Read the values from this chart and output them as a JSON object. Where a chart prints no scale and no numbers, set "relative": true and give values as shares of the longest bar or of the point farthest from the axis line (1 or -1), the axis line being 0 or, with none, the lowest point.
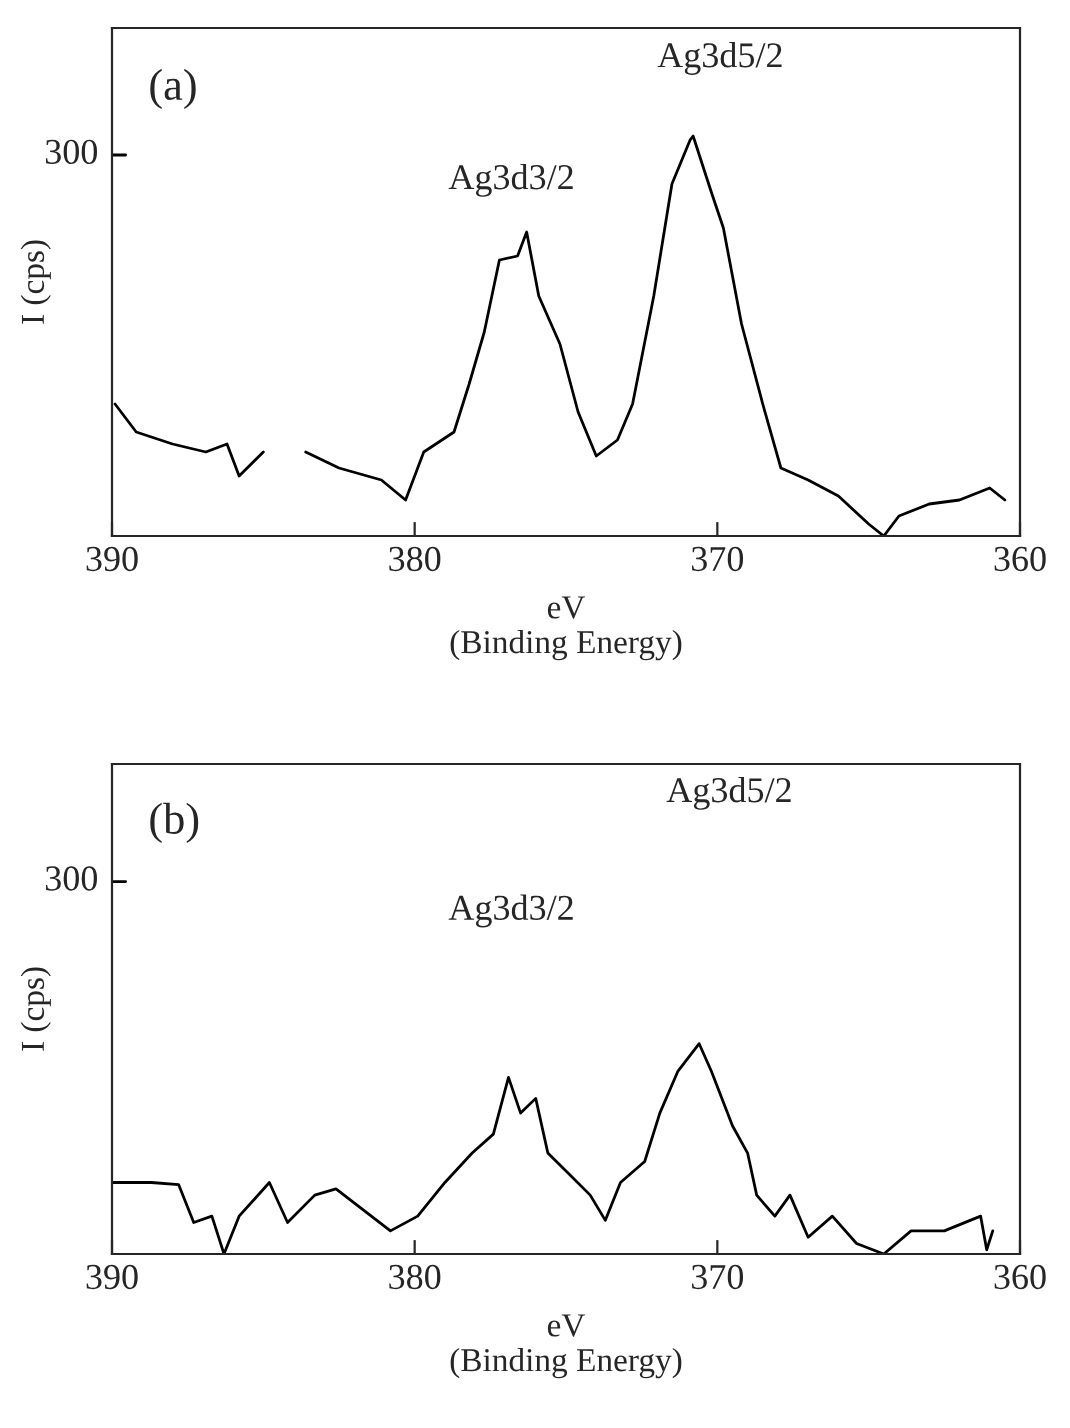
{
  "chart_data": [
    {
      "type": "line",
      "relative": true,
      "xlabel": "eV\n(Binding Energy)",
      "ylabel": "I (cps)",
      "xlim": [
        390,
        360
      ],
      "xticks": [
        390,
        380,
        370,
        360
      ],
      "grid": false,
      "legend": false,
      "x": [
        389.9,
        389.2,
        388.0,
        386.9,
        386.2,
        385.8,
        385.0,
        384.3,
        383.6,
        382.5,
        381.1,
        380.3,
        379.7,
        378.7,
        378.2,
        377.7,
        377.2,
        376.6,
        376.3,
        375.9,
        375.2,
        374.6,
        374.0,
        373.3,
        372.8,
        372.1,
        371.5,
        370.9,
        370.8,
        370.2,
        369.8,
        369.2,
        368.5,
        367.9,
        367.0,
        366.0,
        365.0,
        364.5,
        364.0,
        363.0,
        362.0,
        361.0,
        360.5
      ],
      "series": [
        {
          "color": "#000000",
          "values": [
            0.33,
            0.26,
            0.23,
            0.21,
            0.23,
            0.15,
            0.21,
            null,
            0.21,
            0.17,
            0.14,
            0.09,
            0.21,
            0.26,
            0.38,
            0.51,
            0.69,
            0.7,
            0.76,
            0.6,
            0.48,
            0.31,
            0.2,
            0.24,
            0.33,
            0.6,
            0.88,
            0.99,
            1.0,
            0.86,
            0.77,
            0.53,
            0.33,
            0.17,
            0.14,
            0.1,
            0.03,
            0.0,
            0.05,
            0.08,
            0.09,
            0.12,
            0.09
          ]
        }
      ],
      "annotations": [
        "(a)",
        "300",
        "Ag3d5/2",
        "Ag3d3/2"
      ]
    },
    {
      "type": "line",
      "relative": true,
      "xlabel": "eV\n(Binding Energy)",
      "ylabel": "I (cps)",
      "xlim": [
        390,
        360
      ],
      "xticks": [
        390,
        380,
        370,
        360
      ],
      "grid": false,
      "legend": false,
      "x": [
        390.0,
        388.7,
        387.8,
        387.3,
        386.7,
        386.3,
        385.8,
        384.8,
        384.2,
        383.3,
        382.6,
        381.7,
        380.8,
        379.9,
        379.0,
        378.1,
        377.4,
        376.9,
        376.5,
        376.0,
        375.6,
        374.9,
        374.2,
        373.7,
        373.2,
        372.4,
        371.9,
        371.3,
        370.6,
        370.2,
        369.5,
        369.0,
        368.7,
        368.1,
        367.6,
        367.0,
        366.2,
        365.4,
        364.5,
        363.6,
        362.5,
        361.3,
        361.1,
        360.9
      ],
      "series": [
        {
          "color": "#000000",
          "values": [
            0.34,
            0.34,
            0.33,
            0.15,
            0.18,
            0.0,
            0.18,
            0.34,
            0.15,
            0.28,
            0.31,
            0.21,
            0.11,
            0.18,
            0.34,
            0.48,
            0.57,
            0.84,
            0.67,
            0.74,
            0.48,
            0.38,
            0.28,
            0.16,
            0.34,
            0.44,
            0.67,
            0.87,
            1.0,
            0.87,
            0.61,
            0.48,
            0.28,
            0.18,
            0.28,
            0.08,
            0.18,
            0.05,
            0.0,
            0.11,
            0.11,
            0.18,
            0.02,
            0.11
          ]
        }
      ],
      "annotations": [
        "(b)",
        "300",
        "Ag3d5/2",
        "Ag3d3/2"
      ]
    }
  ]
}
